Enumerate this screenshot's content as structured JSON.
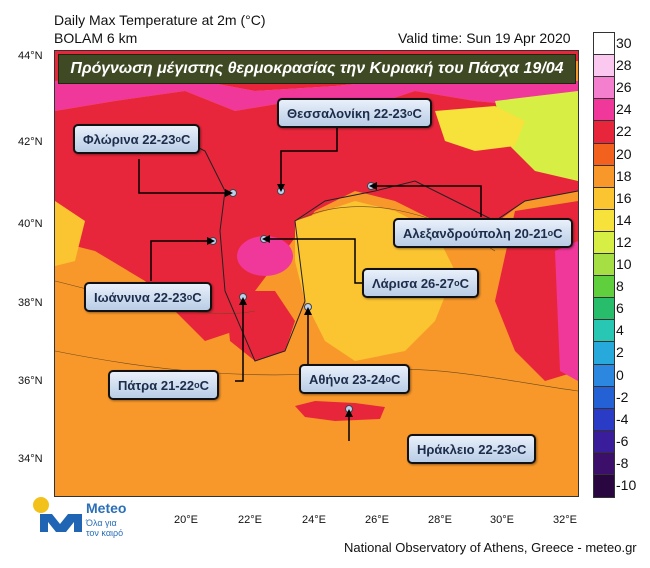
{
  "header": {
    "title": "Daily Max Temperature at 2m (°C)",
    "model": "BOLAM 6 km",
    "valid_time": "Valid time: Sun 19 Apr 2020"
  },
  "banner": "Πρόγνωση μέγιστης θερμοκρασίας την Κυριακή του Πάσχα 19/04",
  "cities": [
    {
      "name": "Θεσσαλονίκη",
      "range": "22-23",
      "unit": "o",
      "c": "C"
    },
    {
      "name": "Φλώρινα",
      "range": "22-23",
      "unit": "o",
      "c": "C"
    },
    {
      "name": "Αλεξανδρούπολη",
      "range": "20-21",
      "unit": "o",
      "c": "C"
    },
    {
      "name": "Ιωάννινα",
      "range": "22-23",
      "unit": "o",
      "c": "C"
    },
    {
      "name": "Λάρισα",
      "range": "26-27",
      "unit": "o",
      "c": "C"
    },
    {
      "name": "Πάτρα",
      "range": "21-22",
      "unit": "o",
      "c": "C"
    },
    {
      "name": "Αθήνα",
      "range": "23-24",
      "unit": "o",
      "c": "C"
    },
    {
      "name": "Ηράκλειο",
      "range": "22-23",
      "unit": "o",
      "c": "C"
    }
  ],
  "lat_ticks": [
    "44°N",
    "42°N",
    "40°N",
    "38°N",
    "36°N",
    "34°N"
  ],
  "lon_ticks": [
    "20°E",
    "22°E",
    "24°E",
    "26°E",
    "28°E",
    "30°E",
    "32°E"
  ],
  "colorbar": {
    "labels": [
      "30",
      "28",
      "26",
      "24",
      "22",
      "20",
      "18",
      "16",
      "14",
      "12",
      "10",
      "8",
      "6",
      "4",
      "2",
      "0",
      "-2",
      "-4",
      "-6",
      "-8",
      "-10"
    ],
    "colors": [
      "#ffffff",
      "#fbc9ef",
      "#f57fcf",
      "#f0379a",
      "#e8263b",
      "#f3611e",
      "#f8982a",
      "#fbc431",
      "#f6e23a",
      "#d7ee45",
      "#a6df44",
      "#5fcf3e",
      "#27bd6a",
      "#28c7b4",
      "#27aadb",
      "#2b87e0",
      "#2461d4",
      "#2a3bc5",
      "#3a1d9a",
      "#3b0f6a",
      "#2a0640"
    ]
  },
  "logo": {
    "name": "Meteo",
    "tagline1": "Όλα για",
    "tagline2": "τον καιρό"
  },
  "footer": "National Observatory of Athens, Greece - meteo.gr"
}
